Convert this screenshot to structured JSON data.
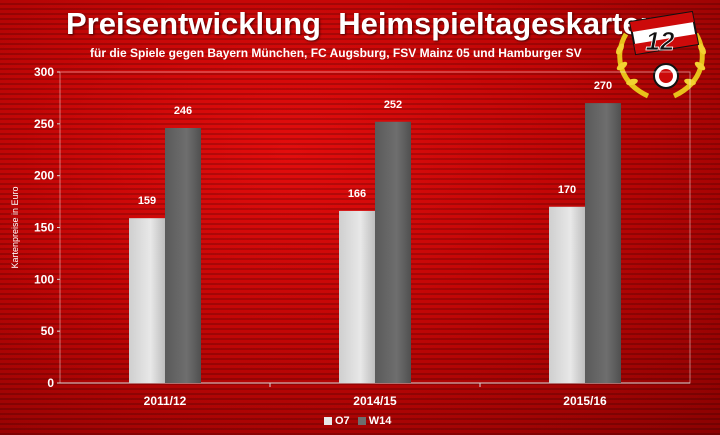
{
  "title": "Preisentwicklung  Heimspieltageskarten",
  "subtitle": "für die Spiele gegen Bayern München, FC Augsburg, FSV Mainz 05 und Hamburger SV",
  "logo_text": "12",
  "colors": {
    "background": "#c20606",
    "series_o7": "#e8e8e8",
    "series_w14": "#6e6e6e",
    "axis_text": "#ffffff"
  },
  "chart_data": {
    "type": "bar",
    "title": "Preisentwicklung  Heimspieltageskarten",
    "subtitle": "für die Spiele gegen Bayern München, FC Augsburg, FSV Mainz 05 und Hamburger SV",
    "xlabel": "",
    "ylabel": "Kartenpreise in Euro",
    "ylim": [
      0,
      300
    ],
    "yticks": [
      0,
      50,
      100,
      150,
      200,
      250,
      300
    ],
    "categories": [
      "2011/12",
      "2014/15",
      "2015/16"
    ],
    "series": [
      {
        "name": "O7",
        "values": [
          159,
          166,
          170
        ]
      },
      {
        "name": "W14",
        "values": [
          246,
          252,
          270
        ]
      }
    ],
    "legend_position": "bottom",
    "grid": false
  }
}
